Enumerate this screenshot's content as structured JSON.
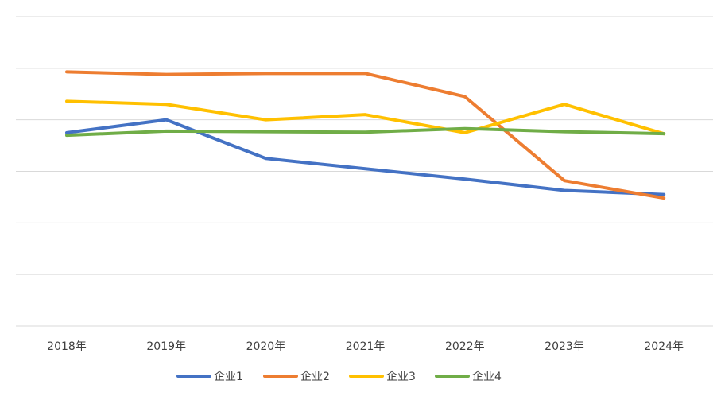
{
  "chart_data": {
    "type": "line",
    "title": "",
    "xlabel": "",
    "ylabel": "",
    "categories": [
      "2018年",
      "2019年",
      "2020年",
      "2021年",
      "2022年",
      "2023年",
      "2024年"
    ],
    "ylim": [
      0,
      6
    ],
    "grid": true,
    "y_tick_labels_visible": false,
    "legend_position": "bottom",
    "series": [
      {
        "name": "企业1",
        "color": "#4472C4",
        "values": [
          3.75,
          4.0,
          3.25,
          3.05,
          2.85,
          2.63,
          2.55
        ]
      },
      {
        "name": "企业2",
        "color": "#ED7D31",
        "values": [
          4.93,
          4.88,
          4.9,
          4.9,
          4.45,
          2.82,
          2.48
        ]
      },
      {
        "name": "企业3",
        "color": "#FFC000",
        "values": [
          4.36,
          4.3,
          4.0,
          4.1,
          3.75,
          4.3,
          3.73
        ]
      },
      {
        "name": "企业4",
        "color": "#70AD47",
        "values": [
          3.7,
          3.78,
          3.77,
          3.76,
          3.83,
          3.77,
          3.73
        ]
      }
    ]
  }
}
